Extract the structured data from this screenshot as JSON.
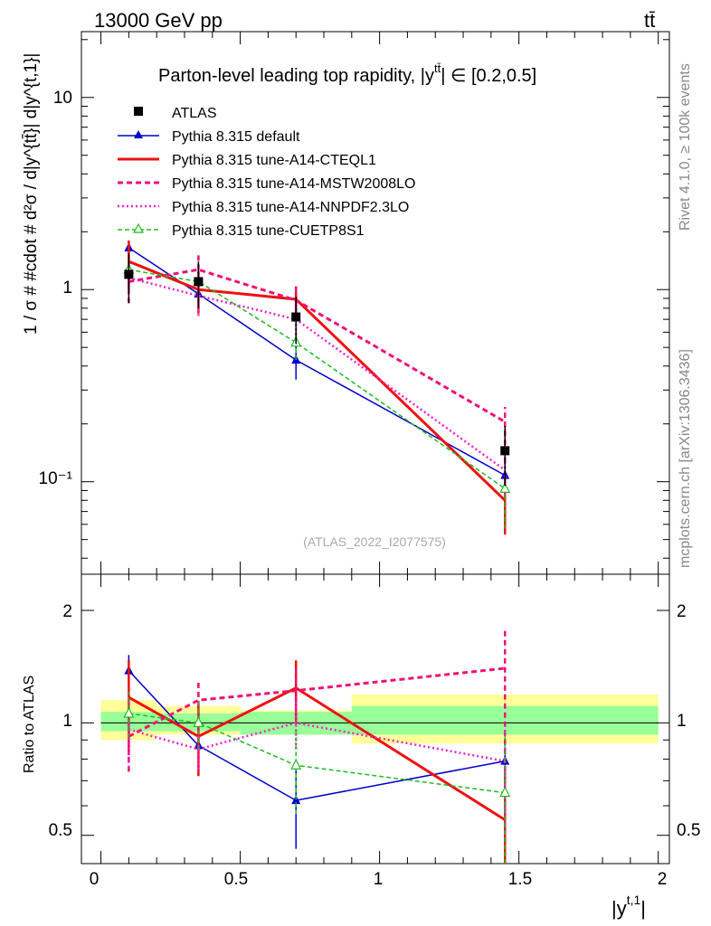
{
  "header": {
    "energy": "13000 GeV pp",
    "process": "tt̄"
  },
  "side_labels": {
    "rivet": "Rivet 4.1.0, ≥ 100k events",
    "mcplots": "mcplots.cern.ch [arXiv:1306.3436]"
  },
  "colors": {
    "atlas": "#000000",
    "default": "#0000cc",
    "cteql1": "#ee1111",
    "mstw": "#ee1177",
    "nnpdf": "#ee22cc",
    "cuetp8s1": "#22bb22",
    "band_inner": "#99ff99",
    "band_outer": "#ffff99"
  },
  "chart_data": [
    {
      "type": "scatter",
      "title": "Parton-level leading top rapidity, |y^{tt̄}| ∈ [0.2,0.5]",
      "title_main": "Parton-level leading top rapidity, |y",
      "title_sup": "tt̄",
      "title_tail": "| ∈ [0.2,0.5]",
      "ylabel": "1 / σ # #cdot # d²σ / d|y^{tt̄}| d|y^{t,1}|",
      "yscale": "log",
      "ylim": [
        0.033,
        22
      ],
      "xlim": [
        -0.07,
        2.04
      ],
      "ytick_labels": [
        "10",
        "1",
        "10⁻¹"
      ],
      "watermark": "(ATLAS_2022_I2077575)",
      "x": [
        0.1,
        0.35,
        0.7,
        1.45
      ],
      "series": [
        {
          "name": "ATLAS",
          "key": "atlas",
          "values": [
            1.2,
            1.1,
            0.72,
            0.145
          ],
          "err_lo": [
            0.35,
            0.3,
            0.2,
            0.05
          ],
          "err_hi": [
            0.35,
            0.3,
            0.2,
            0.05
          ]
        },
        {
          "name": "Pythia 8.315 default",
          "key": "default",
          "values": [
            1.65,
            0.95,
            0.43,
            0.108
          ],
          "err_lo": [
            0.15,
            0.1,
            0.09,
            0.012
          ],
          "err_hi": [
            0.15,
            0.1,
            0.09,
            0.012
          ]
        },
        {
          "name": "Pythia 8.315 tune-A14-CTEQL1",
          "key": "cteql1",
          "values": [
            1.4,
            1.0,
            0.89,
            0.08
          ],
          "err_lo": [
            0.4,
            0.25,
            0.15,
            0.027
          ],
          "err_hi": [
            0.4,
            0.25,
            0.15,
            0.027
          ]
        },
        {
          "name": "Pythia 8.315 tune-A14-MSTW2008LO",
          "key": "mstw",
          "values": [
            1.1,
            1.27,
            0.88,
            0.205
          ],
          "err_lo": [
            0.25,
            0.25,
            0.18,
            0.08
          ],
          "err_hi": [
            0.25,
            0.25,
            0.18,
            0.04
          ]
        },
        {
          "name": "Pythia 8.315 tune-A14-NNPDF2.3LO",
          "key": "nnpdf",
          "values": [
            1.15,
            0.93,
            0.7,
            0.115
          ],
          "err_lo": [
            0.2,
            0.2,
            0.15,
            0.03
          ],
          "err_hi": [
            0.2,
            0.2,
            0.15,
            0.03
          ]
        },
        {
          "name": "Pythia 8.315 tune-CUETP8S1",
          "key": "cuetp8s1",
          "values": [
            1.27,
            1.1,
            0.53,
            0.092
          ],
          "err_lo": [
            0.15,
            0.15,
            0.1,
            0.035
          ],
          "err_hi": [
            0.15,
            0.15,
            0.1,
            0.035
          ]
        }
      ]
    },
    {
      "type": "scatter",
      "title": "Ratio to ATLAS",
      "ylabel": "Ratio to ATLAS",
      "xlabel": "|y^{t,1}|",
      "xlabel_main": "|y",
      "xlabel_sup": "t,1",
      "xlabel_tail": "|",
      "yscale": "log",
      "ylim": [
        0.42,
        2.5
      ],
      "xlim": [
        -0.07,
        2.04
      ],
      "xticks": [
        0,
        0.5,
        1,
        1.5,
        2
      ],
      "xtick_labels": [
        "0",
        "0.5",
        "1",
        "1.5",
        "2"
      ],
      "ytick_labels": [
        "2",
        "1",
        "0.5"
      ],
      "bands": [
        {
          "x0": 0.0,
          "x1": 0.2,
          "inner": [
            0.95,
            1.07
          ],
          "outer": [
            0.9,
            1.15
          ]
        },
        {
          "x0": 0.2,
          "x1": 0.5,
          "inner": [
            0.95,
            1.06
          ],
          "outer": [
            0.93,
            1.11
          ]
        },
        {
          "x0": 0.5,
          "x1": 0.9,
          "inner": [
            0.93,
            1.07
          ],
          "outer": [
            0.93,
            1.08
          ]
        },
        {
          "x0": 0.9,
          "x1": 2.0,
          "inner": [
            0.93,
            1.11
          ],
          "outer": [
            0.88,
            1.19
          ]
        }
      ],
      "x": [
        0.1,
        0.35,
        0.7,
        1.45
      ],
      "series": [
        {
          "name": "Pythia 8.315 default",
          "key": "default",
          "values": [
            1.38,
            0.87,
            0.62,
            0.79
          ],
          "err_lo": [
            0.1,
            0.08,
            0.16,
            0.09
          ],
          "err_hi": [
            0.14,
            0.09,
            0.16,
            0.16
          ]
        },
        {
          "name": "Pythia 8.315 tune-A14-CTEQL1",
          "key": "cteql1",
          "values": [
            1.17,
            0.92,
            1.24,
            0.55
          ],
          "err_lo": [
            0.35,
            0.2,
            0.25,
            0.2
          ],
          "err_hi": [
            0.3,
            0.2,
            0.23,
            0.2
          ]
        },
        {
          "name": "Pythia 8.315 tune-A14-MSTW2008LO",
          "key": "mstw",
          "values": [
            0.92,
            1.15,
            1.22,
            1.4
          ],
          "err_lo": [
            0.18,
            0.4,
            0.2,
            0.9
          ],
          "err_hi": [
            0.18,
            0.15,
            0.2,
            0.4
          ]
        },
        {
          "name": "Pythia 8.315 tune-A14-NNPDF2.3LO",
          "key": "nnpdf",
          "values": [
            0.96,
            0.85,
            1.0,
            0.79
          ],
          "err_lo": [
            0.2,
            0.1,
            0.15,
            0.2
          ],
          "err_hi": [
            0.2,
            0.1,
            0.15,
            0.2
          ]
        },
        {
          "name": "Pythia 8.315 tune-CUETP8S1",
          "key": "cuetp8s1",
          "values": [
            1.06,
            1.0,
            0.77,
            0.65
          ],
          "err_lo": [
            0.15,
            0.15,
            0.2,
            0.25
          ],
          "err_hi": [
            0.15,
            0.15,
            0.2,
            0.3
          ]
        }
      ]
    }
  ]
}
